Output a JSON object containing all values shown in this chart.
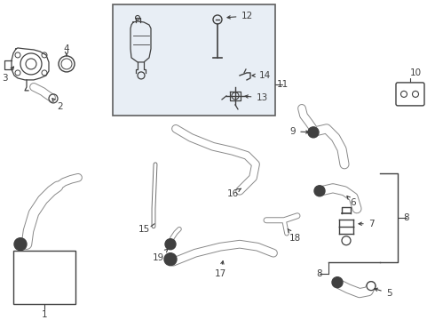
{
  "bg_color": "#ffffff",
  "line_color": "#404040",
  "box_bg": "#e8eef5",
  "lw_thick": 2.5,
  "lw_thin": 1.2,
  "fs": 7.5
}
